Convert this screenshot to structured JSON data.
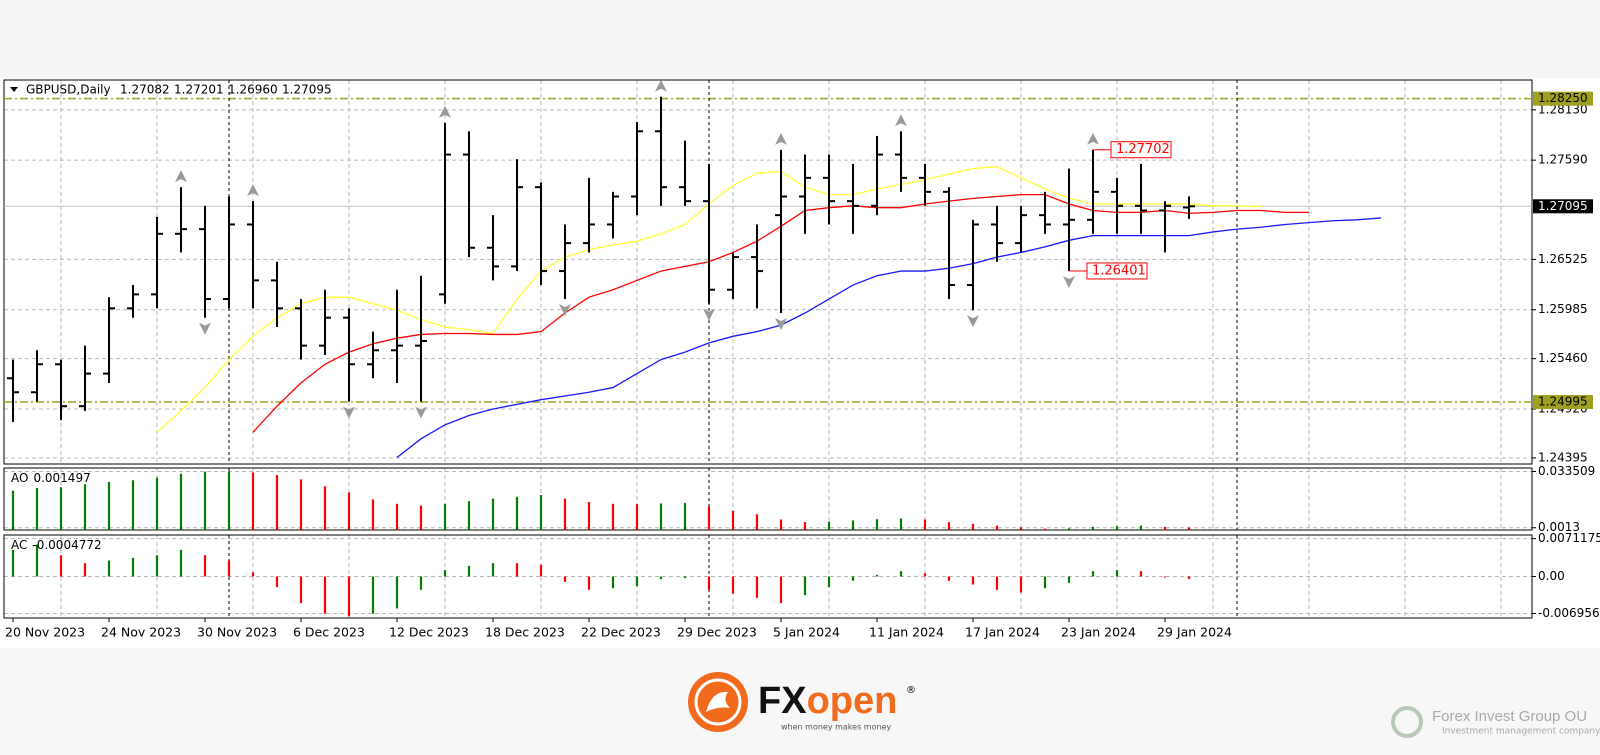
{
  "chart_data": [
    {
      "type": "ohlc",
      "header": {
        "symbol": "GBPUSD,Daily",
        "values": [
          "1.27082",
          "1.27201",
          "1.26960",
          "1.27095"
        ]
      },
      "categories": [
        "20 Nov 2023",
        null,
        null,
        null,
        "24 Nov 2023",
        null,
        null,
        null,
        "30 Nov 2023",
        null,
        null,
        null,
        "6 Dec 2023",
        null,
        null,
        null,
        "12 Dec 2023",
        null,
        null,
        null,
        "18 Dec 2023",
        null,
        null,
        null,
        "22 Dec 2023",
        null,
        null,
        null,
        "29 Dec 2023",
        null,
        null,
        null,
        "5 Jan 2024",
        null,
        null,
        null,
        "11 Jan 2024",
        null,
        null,
        null,
        "17 Jan 2024",
        null,
        null,
        null,
        "23 Jan 2024",
        null,
        null,
        null,
        "29 Jan 2024",
        null,
        null,
        null,
        null,
        null,
        null,
        null,
        null,
        null
      ],
      "open": [
        1.2525,
        1.251,
        1.254,
        1.2495,
        1.253,
        1.26,
        1.2615,
        1.268,
        1.2685,
        1.261,
        1.269,
        1.263,
        1.26,
        1.256,
        1.259,
        1.254,
        1.2555,
        1.256,
        1.2615,
        1.2765,
        1.2665,
        1.2645,
        1.273,
        1.264,
        1.267,
        1.269,
        1.272,
        1.279,
        1.273,
        1.2715,
        1.262,
        1.2655,
        1.27,
        1.272,
        1.274,
        1.2715,
        1.271,
        1.2765,
        1.274,
        1.2725,
        1.2625,
        1.269,
        1.267,
        1.27,
        1.269,
        1.2695,
        1.2725,
        1.271,
        1.2705,
        1.27082,
        null,
        null,
        null,
        null,
        null,
        null,
        null,
        null
      ],
      "high": [
        1.2545,
        1.2555,
        1.2545,
        1.256,
        1.2612,
        1.2625,
        1.2698,
        1.273,
        1.271,
        1.272,
        1.2715,
        1.265,
        1.261,
        1.262,
        1.26,
        1.2575,
        1.262,
        1.2635,
        1.2799,
        1.279,
        1.27,
        1.276,
        1.2735,
        1.269,
        1.274,
        1.2725,
        1.28,
        1.2827,
        1.278,
        1.2755,
        1.266,
        1.269,
        1.277,
        1.2765,
        1.2765,
        1.2755,
        1.2785,
        1.279,
        1.2755,
        1.273,
        1.2695,
        1.271,
        1.271,
        1.2725,
        1.275,
        1.27702,
        1.274,
        1.2755,
        1.2715,
        1.27201,
        null,
        null,
        null,
        null,
        null,
        null,
        null,
        null
      ],
      "low": [
        1.2478,
        1.25,
        1.248,
        1.249,
        1.252,
        1.259,
        1.26,
        1.266,
        1.259,
        1.26,
        1.26,
        1.258,
        1.2545,
        1.255,
        1.25,
        1.2525,
        1.252,
        1.25,
        1.2605,
        1.2655,
        1.263,
        1.264,
        1.2625,
        1.261,
        1.266,
        1.2675,
        1.27,
        1.271,
        1.271,
        1.2605,
        1.261,
        1.26,
        1.2595,
        1.268,
        1.269,
        1.268,
        1.27,
        1.2725,
        1.271,
        1.261,
        1.2598,
        1.265,
        1.266,
        1.268,
        1.26401,
        1.268,
        1.268,
        1.268,
        1.266,
        1.2696,
        null,
        null,
        null,
        null,
        null,
        null,
        null,
        null
      ],
      "close": [
        1.251,
        1.254,
        1.2495,
        1.253,
        1.26,
        1.2615,
        1.268,
        1.2685,
        1.261,
        1.269,
        1.263,
        1.26,
        1.256,
        1.259,
        1.254,
        1.2555,
        1.256,
        1.2565,
        1.2765,
        1.2665,
        1.2645,
        1.273,
        1.264,
        1.267,
        1.269,
        1.272,
        1.279,
        1.273,
        1.2715,
        1.262,
        1.2655,
        1.264,
        1.272,
        1.274,
        1.2715,
        1.271,
        1.2765,
        1.274,
        1.2725,
        1.2625,
        1.269,
        1.267,
        1.27,
        1.269,
        1.2695,
        1.2725,
        1.271,
        1.2705,
        1.271,
        1.27095,
        null,
        null,
        null,
        null,
        null,
        null,
        null,
        null
      ],
      "bar_color": "#000000",
      "series": [
        {
          "color": "#ffff33",
          "values": [
            null,
            null,
            null,
            null,
            null,
            null,
            1.2467,
            1.249,
            1.2515,
            1.2545,
            1.257,
            1.259,
            1.2605,
            1.2612,
            1.2612,
            1.2605,
            1.2598,
            1.2588,
            1.258,
            1.2577,
            1.2573,
            1.261,
            1.264,
            1.2655,
            1.2663,
            1.2668,
            1.2672,
            1.268,
            1.269,
            1.2712,
            1.2732,
            1.2745,
            1.2747,
            1.273,
            1.2722,
            1.2722,
            1.2728,
            1.2733,
            1.2738,
            1.2744,
            1.275,
            1.2752,
            1.274,
            1.2728,
            1.2718,
            1.2712,
            1.2712,
            1.2712,
            1.2712,
            1.2712,
            1.271,
            1.271,
            1.2709,
            null,
            null,
            null,
            null,
            null
          ]
        },
        {
          "color": "#ff0000",
          "values": [
            null,
            null,
            null,
            null,
            null,
            null,
            null,
            null,
            null,
            null,
            1.2467,
            1.2495,
            1.252,
            1.254,
            1.2553,
            1.2562,
            1.2568,
            1.2572,
            1.2573,
            1.2573,
            1.2572,
            1.2572,
            1.2575,
            1.2595,
            1.2612,
            1.262,
            1.263,
            1.264,
            1.2645,
            1.265,
            1.266,
            1.2672,
            1.2688,
            1.2705,
            1.2708,
            1.271,
            1.2708,
            1.2708,
            1.2712,
            1.2715,
            1.2718,
            1.272,
            1.2722,
            1.2722,
            1.2712,
            1.2705,
            1.2703,
            1.2703,
            1.2705,
            1.2702,
            1.2703,
            1.2705,
            1.2705,
            1.2703,
            1.2703,
            null,
            null,
            null
          ]
        },
        {
          "color": "#1a1aff",
          "values": [
            null,
            null,
            null,
            null,
            null,
            null,
            null,
            null,
            null,
            null,
            null,
            null,
            null,
            null,
            null,
            null,
            1.244,
            1.246,
            1.2475,
            1.2485,
            1.2492,
            1.2497,
            1.2502,
            1.2506,
            1.251,
            1.2515,
            1.253,
            1.2545,
            1.2553,
            1.2563,
            1.257,
            1.2575,
            1.2582,
            1.2595,
            1.261,
            1.2625,
            1.2635,
            1.264,
            1.264,
            1.2643,
            1.2648,
            1.2655,
            1.266,
            1.2666,
            1.2673,
            1.2678,
            1.2678,
            1.2678,
            1.2678,
            1.2678,
            1.2682,
            1.2685,
            1.2687,
            1.269,
            1.2692,
            1.2694,
            1.2695,
            1.2697
          ]
        }
      ],
      "fractals_up": [
        7,
        10,
        18,
        27,
        32,
        37,
        45
      ],
      "fractals_down": [
        8,
        14,
        17,
        23,
        29,
        32,
        40,
        44
      ],
      "fractal_color": "#999999",
      "period_separators": [
        9,
        29,
        51
      ],
      "levels": [
        {
          "value": 1.2825,
          "label": "1.28250"
        },
        {
          "value": 1.24995,
          "label": "1.24995"
        }
      ],
      "level_color": "#a0a020",
      "current_price": {
        "value": 1.27095,
        "label": "1.27095"
      },
      "annotations": [
        {
          "value": 1.27702,
          "label": "1.27702",
          "bar": 45
        },
        {
          "value": 1.26401,
          "label": "1.26401",
          "bar": 44
        }
      ],
      "annotation_color": "#ff0000",
      "ylim": [
        1.2433,
        1.2845
      ],
      "yticks": [
        {
          "value": 1.2813,
          "label": "1.28130"
        },
        {
          "value": 1.2759,
          "label": "1.27590"
        },
        1.26525,
        1.25985,
        {
          "value": 1.2546,
          "label": "1.25460"
        },
        {
          "value": 1.2492,
          "label": "1.24920"
        },
        1.24395
      ],
      "grid": true
    },
    {
      "type": "bar",
      "title": "AO",
      "values": [
        0.0225,
        0.024,
        0.0245,
        0.0262,
        0.0275,
        0.0285,
        0.03,
        0.0322,
        0.0334,
        0.0336,
        0.033,
        0.0315,
        0.029,
        0.025,
        0.0215,
        0.0175,
        0.015,
        0.014,
        0.015,
        0.0165,
        0.018,
        0.019,
        0.02,
        0.018,
        0.016,
        0.015,
        0.0148,
        0.0152,
        0.0155,
        0.0135,
        0.011,
        0.009,
        0.006,
        0.0045,
        0.0048,
        0.0055,
        0.0062,
        0.0066,
        0.006,
        0.0045,
        0.0035,
        0.0025,
        0.0015,
        0.0008,
        0.001,
        0.0018,
        0.0022,
        0.0025,
        0.0018,
        0.001497
      ],
      "up_color": "#008000",
      "down_color": "#ff0000",
      "ylim": [
        0,
        0.0355
      ],
      "yticks": [
        0.033509,
        0.0013
      ],
      "grid": true
    },
    {
      "type": "bar",
      "title": "AC",
      "values": [
        0.005,
        0.006,
        0.004,
        0.0025,
        0.003,
        0.0035,
        0.004,
        0.005,
        0.004,
        0.003,
        0.0008,
        -0.002,
        -0.005,
        -0.007,
        -0.0075,
        -0.007,
        -0.006,
        -0.0025,
        0.0012,
        0.002,
        0.0025,
        0.0025,
        0.0022,
        -0.001,
        -0.0025,
        -0.0022,
        -0.0018,
        -0.0005,
        -0.0003,
        -0.0025,
        -0.0032,
        -0.004,
        -0.005,
        -0.0035,
        -0.002,
        -0.0008,
        0.0003,
        0.001,
        0.0006,
        -0.0008,
        -0.0015,
        -0.0025,
        -0.003,
        -0.0022,
        -0.0012,
        0.001,
        0.0012,
        0.001,
        -0.0002,
        -0.0004772
      ],
      "up_color": "#008000",
      "down_color": "#ff0000",
      "ylim": [
        -0.0078,
        0.0078
      ],
      "yticks": [
        0.0071175,
        {
          "value": 0,
          "label": "0.00"
        },
        -0.006956
      ],
      "grid": true
    }
  ],
  "branding": {
    "logo_fx": "FX",
    "logo_open": "open",
    "registered": "®",
    "tagline": "when money makes money",
    "company": "Forex Invest Group OU",
    "company_tagline": "Investment management company"
  }
}
